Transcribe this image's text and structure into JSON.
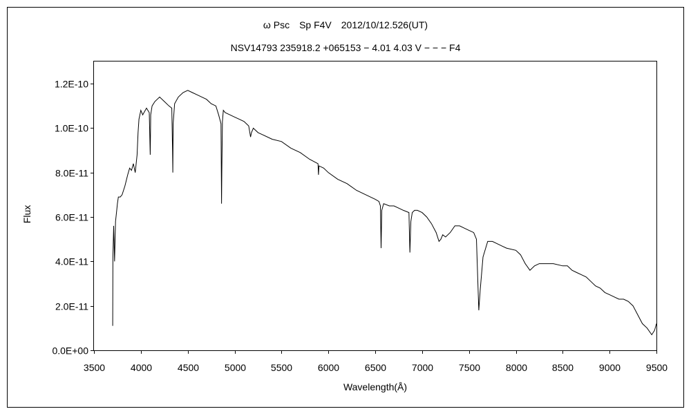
{
  "chart_data": {
    "type": "line",
    "title": "ω Psc　Sp F4V　2012/10/12.526(UT)",
    "subtitle": "NSV14793 235918.2 +065153 − 4.01 4.03 V − − − F4",
    "xlabel": "Wavelength(Å)",
    "ylabel": "Flux",
    "xlim": [
      3500,
      9500
    ],
    "ylim": [
      0,
      1.3e-10
    ],
    "x_ticks": [
      3500,
      4000,
      4500,
      5000,
      5500,
      6000,
      6500,
      7000,
      7500,
      8000,
      8500,
      9000,
      9500
    ],
    "x_tick_labels": [
      "3500",
      "4000",
      "4500",
      "5000",
      "5500",
      "6000",
      "6500",
      "7000",
      "7500",
      "8000",
      "8500",
      "9000",
      "9500"
    ],
    "y_ticks": [
      0,
      2e-11,
      4e-11,
      6e-11,
      8e-11,
      1e-10,
      1.2e-10
    ],
    "y_tick_labels": [
      "0.0E+00",
      "2.0E-11",
      "4.0E-11",
      "6.0E-11",
      "8.0E-11",
      "1.0E-10",
      "1.2E-10"
    ],
    "grid": false,
    "legend": "none",
    "line_color": "#000000",
    "series": [
      {
        "x": [
          3700,
          3702,
          3710,
          3720,
          3730,
          3740,
          3750,
          3760,
          3780,
          3800,
          3830,
          3860,
          3880,
          3900,
          3920,
          3940,
          3960,
          3970,
          3980,
          4000,
          4020,
          4060,
          4090,
          4100,
          4102,
          4105,
          4120,
          4150,
          4200,
          4250,
          4300,
          4330,
          4338,
          4341,
          4345,
          4360,
          4400,
          4450,
          4500,
          4550,
          4600,
          4650,
          4700,
          4750,
          4800,
          4830,
          4855,
          4861,
          4864,
          4870,
          4880,
          4900,
          4950,
          5000,
          5050,
          5100,
          5150,
          5170,
          5180,
          5200,
          5250,
          5300,
          5400,
          5500,
          5600,
          5700,
          5800,
          5890,
          5895,
          5900,
          5950,
          6000,
          6100,
          6200,
          6300,
          6400,
          6500,
          6540,
          6555,
          6563,
          6570,
          6590,
          6650,
          6700,
          6750,
          6800,
          6860,
          6870,
          6880,
          6895,
          6920,
          6950,
          7000,
          7050,
          7100,
          7150,
          7180,
          7200,
          7220,
          7250,
          7300,
          7350,
          7400,
          7450,
          7500,
          7550,
          7580,
          7595,
          7605,
          7620,
          7650,
          7700,
          7750,
          7800,
          7850,
          7900,
          8000,
          8050,
          8100,
          8150,
          8200,
          8250,
          8300,
          8400,
          8500,
          8550,
          8600,
          8650,
          8700,
          8750,
          8800,
          8850,
          8900,
          8950,
          9000,
          9050,
          9100,
          9150,
          9200,
          9250,
          9300,
          9350,
          9400,
          9450,
          9480,
          9500
        ],
        "y": [
          1.1e-11,
          4.2e-11,
          5.6e-11,
          4e-11,
          5.8e-11,
          6.2e-11,
          6.6e-11,
          6.9e-11,
          6.9e-11,
          7e-11,
          7.4e-11,
          7.9e-11,
          8.2e-11,
          8.1e-11,
          8.4e-11,
          8e-11,
          8.8e-11,
          9.8e-11,
          1.04e-10,
          1.08e-10,
          1.06e-10,
          1.09e-10,
          1.07e-10,
          8.8e-11,
          9.5e-11,
          1.06e-10,
          1.1e-10,
          1.12e-10,
          1.14e-10,
          1.12e-10,
          1.1e-10,
          1.09e-10,
          9e-11,
          8e-11,
          1.02e-10,
          1.11e-10,
          1.14e-10,
          1.16e-10,
          1.17e-10,
          1.16e-10,
          1.15e-10,
          1.14e-10,
          1.13e-10,
          1.11e-10,
          1.1e-10,
          1.06e-10,
          1.02e-10,
          6.6e-11,
          8e-11,
          1.03e-10,
          1.08e-10,
          1.07e-10,
          1.06e-10,
          1.05e-10,
          1.04e-10,
          1.03e-10,
          1.01e-10,
          9.6e-11,
          9.8e-11,
          1e-10,
          9.8e-11,
          9.7e-11,
          9.5e-11,
          9.4e-11,
          9.1e-11,
          8.9e-11,
          8.6e-11,
          8.4e-11,
          7.9e-11,
          8.3e-11,
          8.2e-11,
          8e-11,
          7.7e-11,
          7.5e-11,
          7.2e-11,
          7e-11,
          6.8e-11,
          6.7e-11,
          6.5e-11,
          4.6e-11,
          6.3e-11,
          6.6e-11,
          6.5e-11,
          6.5e-11,
          6.4e-11,
          6.3e-11,
          6.2e-11,
          4.4e-11,
          5.8e-11,
          6.2e-11,
          6.3e-11,
          6.3e-11,
          6.2e-11,
          6e-11,
          5.7e-11,
          5.3e-11,
          4.9e-11,
          5e-11,
          5.2e-11,
          5.1e-11,
          5.3e-11,
          5.6e-11,
          5.6e-11,
          5.5e-11,
          5.4e-11,
          5.3e-11,
          5e-11,
          3e-11,
          1.8e-11,
          2.7e-11,
          4.2e-11,
          4.9e-11,
          4.9e-11,
          4.8e-11,
          4.7e-11,
          4.6e-11,
          4.5e-11,
          4.3e-11,
          3.9e-11,
          3.6e-11,
          3.8e-11,
          3.9e-11,
          3.9e-11,
          3.9e-11,
          3.8e-11,
          3.8e-11,
          3.6e-11,
          3.5e-11,
          3.4e-11,
          3.3e-11,
          3.1e-11,
          2.9e-11,
          2.8e-11,
          2.6e-11,
          2.5e-11,
          2.4e-11,
          2.3e-11,
          2.3e-11,
          2.2e-11,
          2e-11,
          1.6e-11,
          1.2e-11,
          1e-11,
          7e-12,
          9e-12,
          1.2e-11
        ]
      }
    ]
  }
}
